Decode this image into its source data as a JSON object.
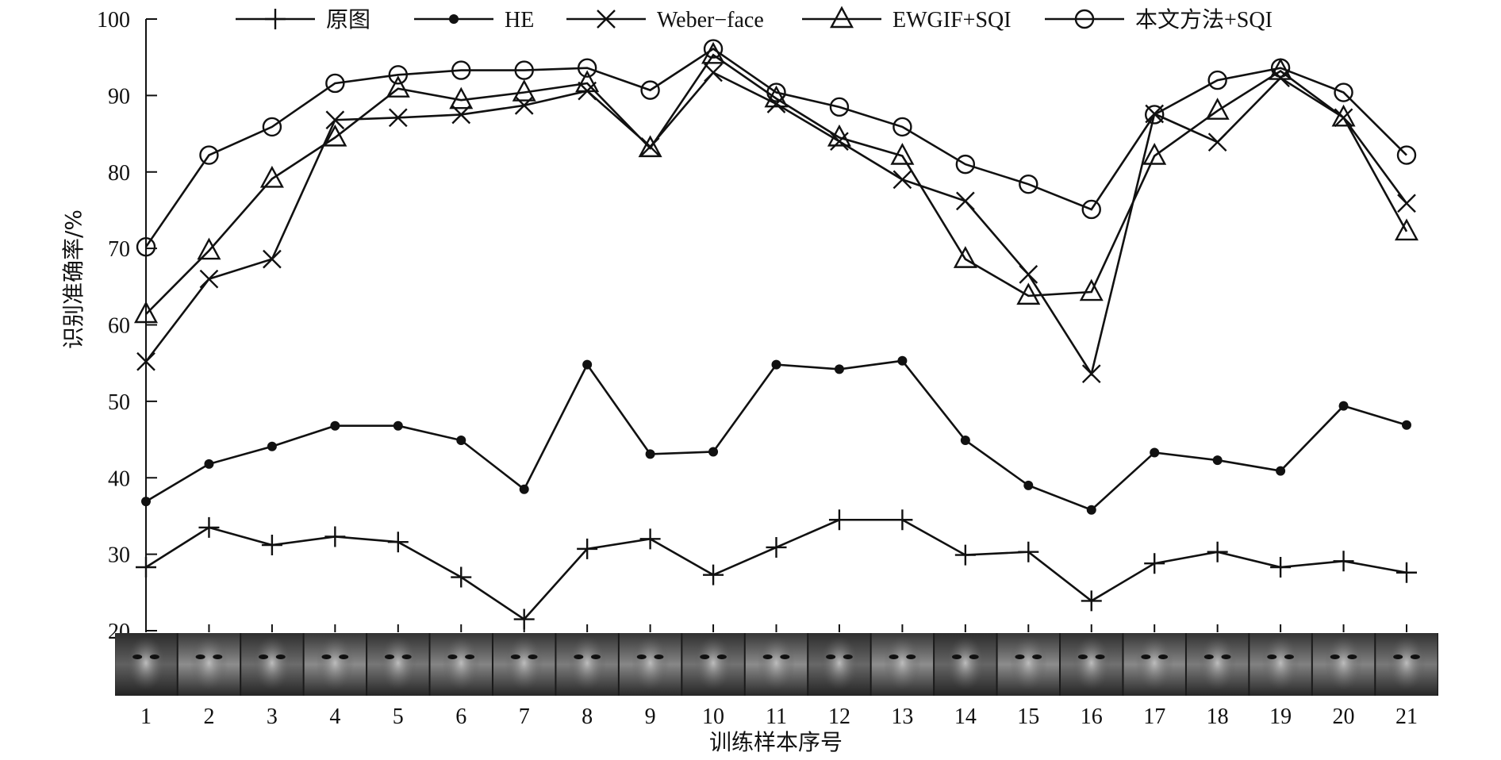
{
  "chart_data": {
    "type": "line",
    "x": [
      1,
      2,
      3,
      4,
      5,
      6,
      7,
      8,
      9,
      10,
      11,
      12,
      13,
      14,
      15,
      16,
      17,
      18,
      19,
      20,
      21
    ],
    "xlabel": "训练样本序号",
    "ylabel": "识别准确率/%",
    "ylim": [
      20,
      100
    ],
    "yticks": [
      20,
      30,
      40,
      50,
      60,
      70,
      80,
      90,
      100
    ],
    "grid": false,
    "legend_position": "top",
    "face_strip_below_axis": true,
    "series": [
      {
        "name": "原图",
        "marker": "plus",
        "values": [
          28.3,
          33.5,
          31.2,
          32.3,
          31.6,
          27.0,
          21.5,
          30.7,
          32.0,
          27.3,
          30.9,
          34.5,
          34.5,
          29.9,
          30.3,
          23.9,
          28.8,
          30.3,
          28.3,
          29.1,
          27.6
        ]
      },
      {
        "name": "HE",
        "marker": "dot",
        "values": [
          36.9,
          41.8,
          44.1,
          46.8,
          46.8,
          44.9,
          38.5,
          54.8,
          43.1,
          43.4,
          54.8,
          54.2,
          55.3,
          44.9,
          39.0,
          35.8,
          43.3,
          42.3,
          40.9,
          49.4,
          46.9
        ]
      },
      {
        "name": "Weber−face",
        "marker": "cross",
        "values": [
          55.2,
          66.0,
          68.6,
          86.8,
          87.1,
          87.5,
          88.7,
          90.6,
          83.3,
          93.0,
          88.9,
          84.0,
          79.0,
          76.2,
          66.6,
          53.6,
          87.6,
          83.9,
          92.3,
          87.1,
          75.9
        ]
      },
      {
        "name": "EWGIF+SQI",
        "marker": "triangle",
        "values": [
          61.4,
          69.7,
          79.1,
          84.5,
          90.9,
          89.4,
          90.4,
          91.6,
          83.1,
          95.3,
          89.6,
          84.5,
          82.1,
          68.6,
          63.8,
          64.3,
          82.1,
          88.0,
          93.2,
          87.1,
          72.2
        ]
      },
      {
        "name": "本文方法+SQI",
        "marker": "circle",
        "values": [
          70.2,
          82.2,
          85.9,
          91.6,
          92.7,
          93.3,
          93.3,
          93.6,
          90.7,
          96.1,
          90.4,
          88.5,
          85.9,
          81.0,
          78.4,
          75.1,
          87.5,
          92.0,
          93.6,
          90.4,
          82.2
        ]
      }
    ]
  }
}
